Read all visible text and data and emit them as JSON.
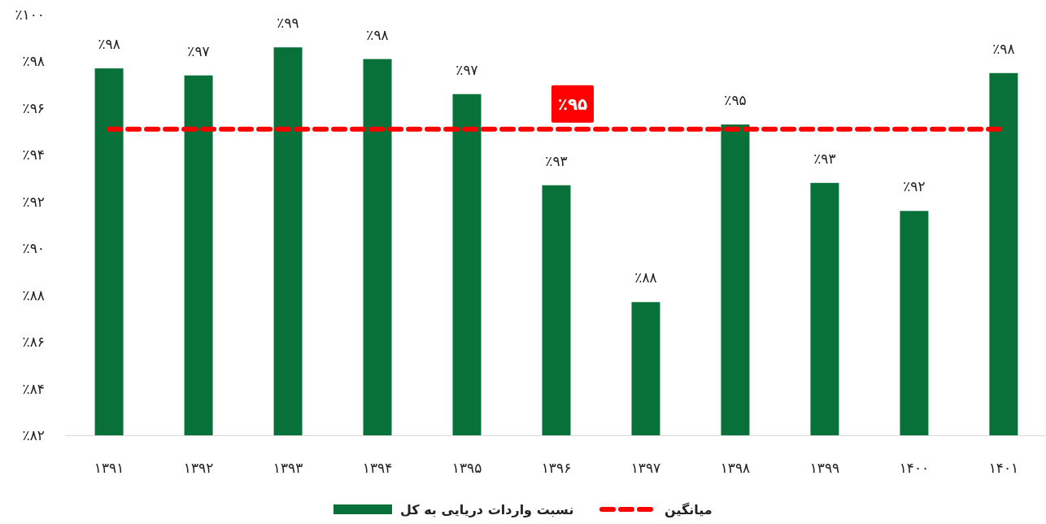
{
  "chart_data": {
    "type": "bar",
    "categories": [
      "۱۳۹۱",
      "۱۳۹۲",
      "۱۳۹۳",
      "۱۳۹۴",
      "۱۳۹۵",
      "۱۳۹۶",
      "۱۳۹۷",
      "۱۳۹۸",
      "۱۳۹۹",
      "۱۴۰۰",
      "۱۴۰۱"
    ],
    "ylim": [
      82,
      100
    ],
    "yticks": [
      {
        "value": 82,
        "label": "٪۸۲"
      },
      {
        "value": 84,
        "label": "٪۸۴"
      },
      {
        "value": 86,
        "label": "٪۸۶"
      },
      {
        "value": 88,
        "label": "٪۸۸"
      },
      {
        "value": 90,
        "label": "٪۹۰"
      },
      {
        "value": 92,
        "label": "٪۹۲"
      },
      {
        "value": 94,
        "label": "٪۹۴"
      },
      {
        "value": 96,
        "label": "٪۹۶"
      },
      {
        "value": 98,
        "label": "٪۹۸"
      },
      {
        "value": 100,
        "label": "٪۱۰۰"
      }
    ],
    "legend": "bottom",
    "series": [
      {
        "name": "نسبت واردات دریایی به کل",
        "color": "#077139",
        "values": [
          97.7,
          97.4,
          98.6,
          98.1,
          96.6,
          92.7,
          87.7,
          95.3,
          92.8,
          91.6,
          97.5
        ],
        "value_labels": [
          "٪۹۸",
          "٪۹۷",
          "٪۹۹",
          "٪۹۸",
          "٪۹۷",
          "٪۹۳",
          "٪۸۸",
          "٪۹۵",
          "٪۹۳",
          "٪۹۲",
          "٪۹۸"
        ]
      },
      {
        "type": "line",
        "name": "میانگین",
        "color": "#ff0000",
        "line_style": "dashed",
        "values": [
          95.1,
          95.1,
          95.1,
          95.1,
          95.1,
          95.1,
          95.1,
          95.1,
          95.1,
          95.1,
          95.1
        ],
        "value_labels": [
          null,
          null,
          null,
          null,
          null,
          "٪۹۵",
          null,
          null,
          null,
          null,
          null
        ]
      }
    ]
  }
}
